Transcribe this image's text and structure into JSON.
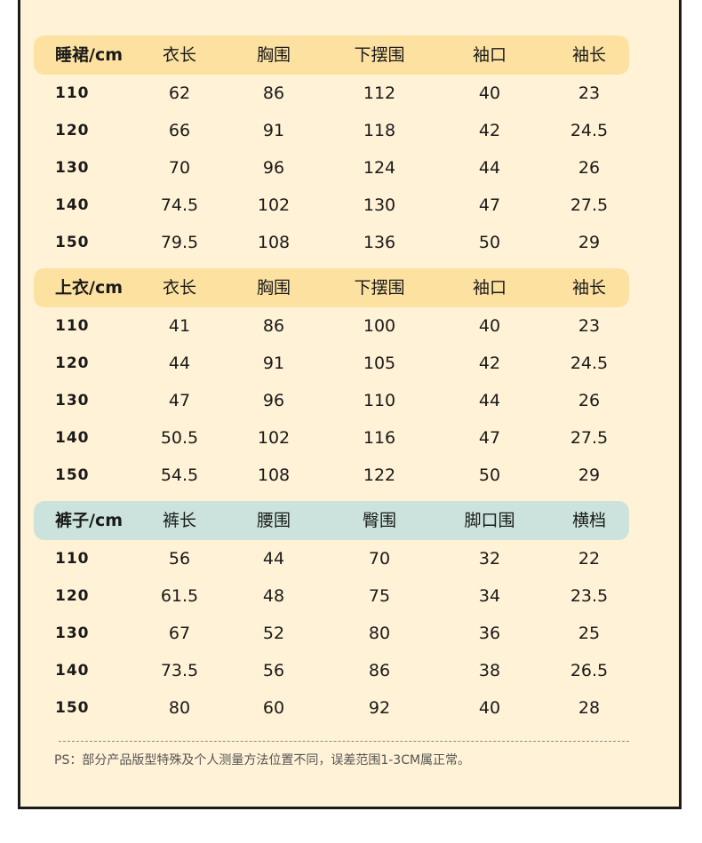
{
  "colors": {
    "panel_bg": "#fff2d6",
    "header_yellow": "#fde1a1",
    "header_teal": "#cbe3dc",
    "border": "#1a1a1a"
  },
  "tables": [
    {
      "header": [
        "睡裙/cm",
        "衣长",
        "胸围",
        "下摆围",
        "袖口",
        "袖长"
      ],
      "rows": [
        [
          "110",
          "62",
          "86",
          "112",
          "40",
          "23"
        ],
        [
          "120",
          "66",
          "91",
          "118",
          "42",
          "24.5"
        ],
        [
          "130",
          "70",
          "96",
          "124",
          "44",
          "26"
        ],
        [
          "140",
          "74.5",
          "102",
          "130",
          "47",
          "27.5"
        ],
        [
          "150",
          "79.5",
          "108",
          "136",
          "50",
          "29"
        ]
      ]
    },
    {
      "header": [
        "上衣/cm",
        "衣长",
        "胸围",
        "下摆围",
        "袖口",
        "袖长"
      ],
      "rows": [
        [
          "110",
          "41",
          "86",
          "100",
          "40",
          "23"
        ],
        [
          "120",
          "44",
          "91",
          "105",
          "42",
          "24.5"
        ],
        [
          "130",
          "47",
          "96",
          "110",
          "44",
          "26"
        ],
        [
          "140",
          "50.5",
          "102",
          "116",
          "47",
          "27.5"
        ],
        [
          "150",
          "54.5",
          "108",
          "122",
          "50",
          "29"
        ]
      ]
    },
    {
      "header": [
        "裤子/cm",
        "裤长",
        "腰围",
        "臀围",
        "脚口围",
        "横档"
      ],
      "rows": [
        [
          "110",
          "56",
          "44",
          "70",
          "32",
          "22"
        ],
        [
          "120",
          "61.5",
          "48",
          "75",
          "34",
          "23.5"
        ],
        [
          "130",
          "67",
          "52",
          "80",
          "36",
          "25"
        ],
        [
          "140",
          "73.5",
          "56",
          "86",
          "38",
          "26.5"
        ],
        [
          "150",
          "80",
          "60",
          "92",
          "40",
          "28"
        ]
      ]
    }
  ],
  "note": "PS：部分产品版型特殊及个人测量方法位置不同，误差范围1-3CM属正常。"
}
